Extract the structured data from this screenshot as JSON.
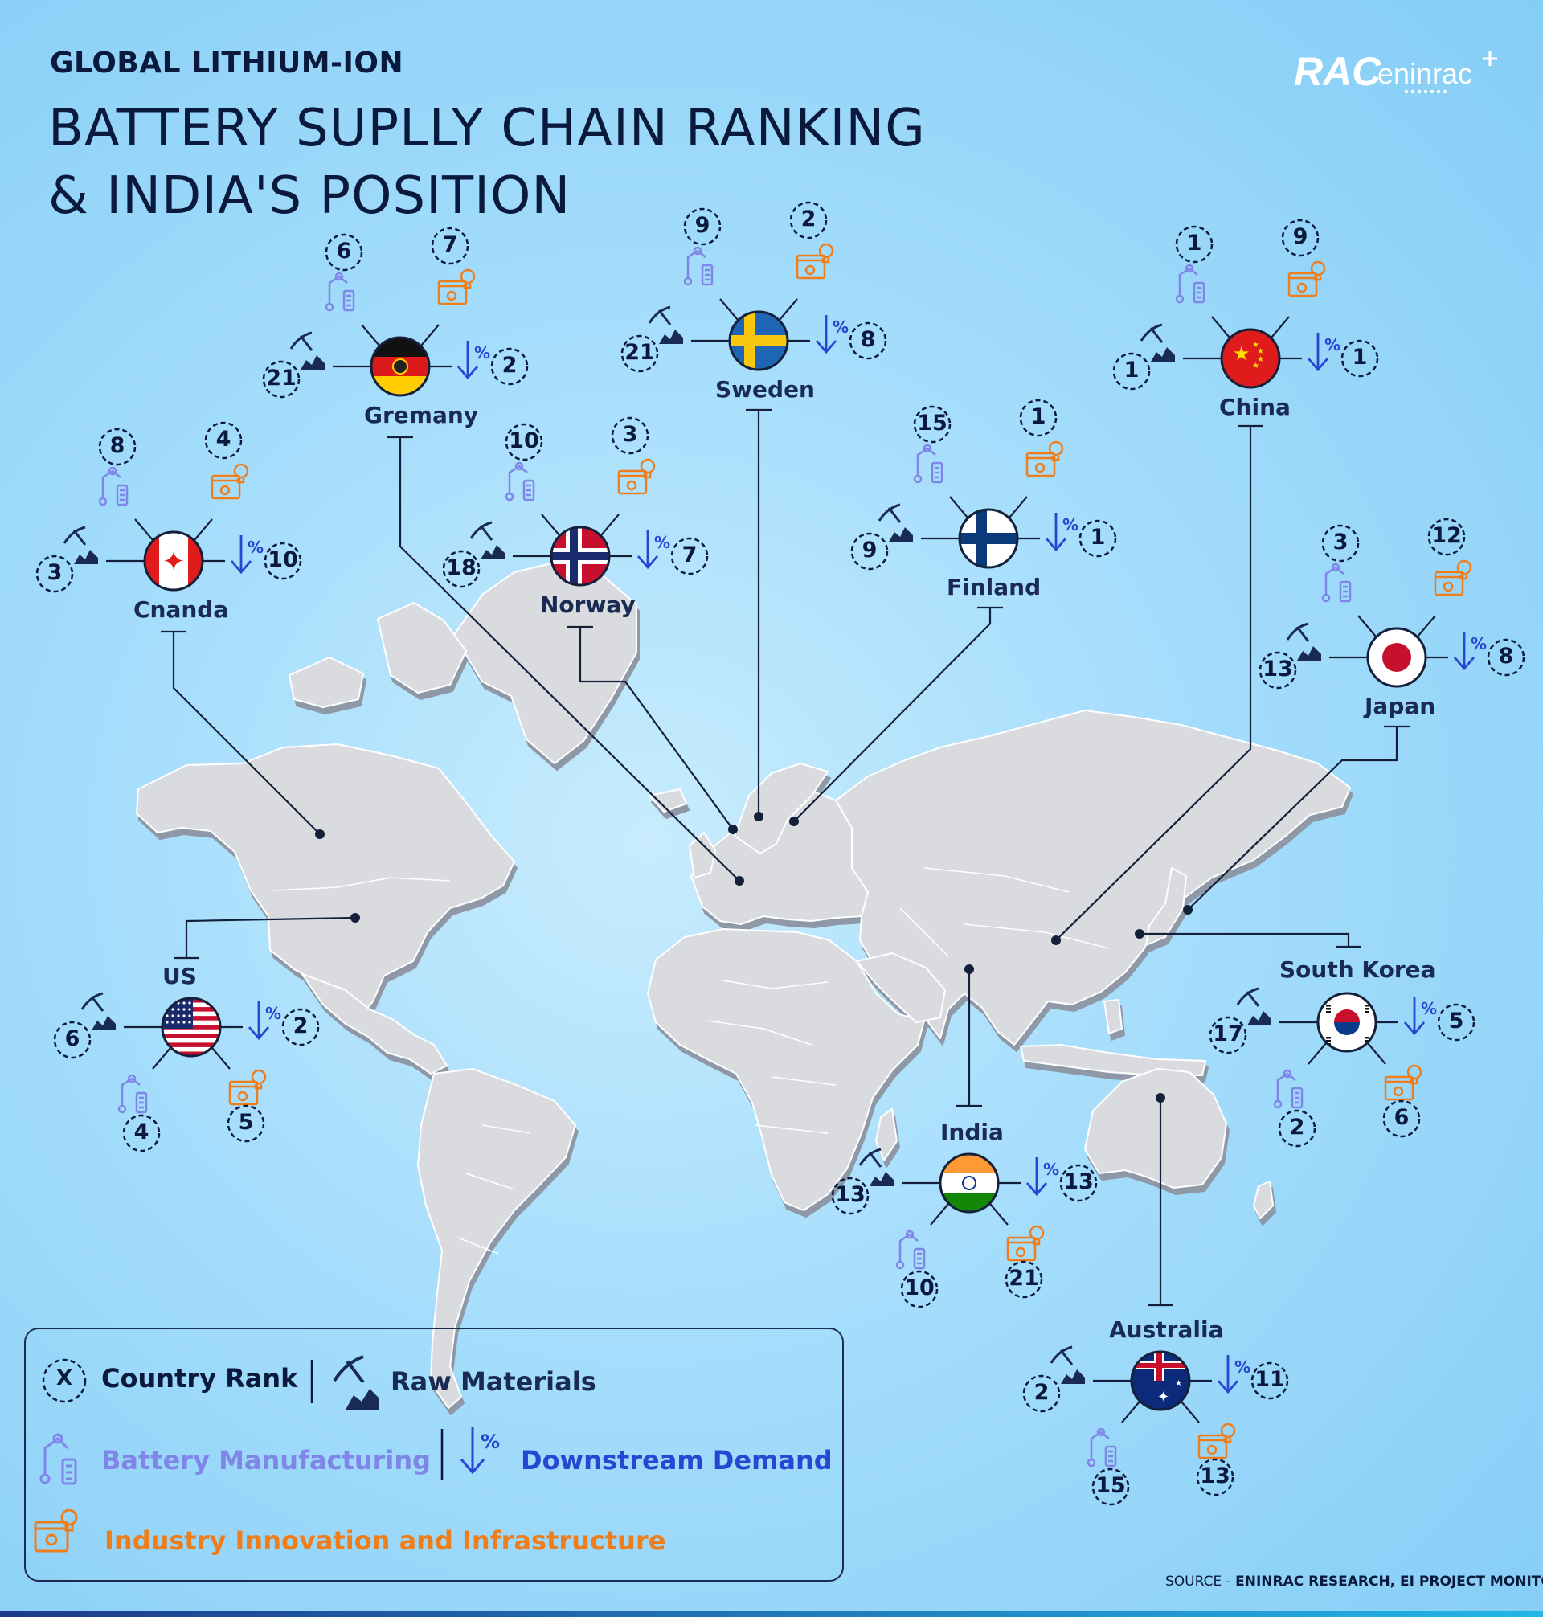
{
  "header": {
    "subtitle": "GLOBAL LITHIUM-ION",
    "title_line1": "BATTERY SUPLLY CHAIN RANKING",
    "title_line2": "& INDIA'S POSITION",
    "logo_text_a": "RAC",
    "logo_text_b": "eninrac"
  },
  "countries": [
    {
      "name": "Gremany",
      "flag": "germany-flag-icon",
      "raw": "21",
      "battery": "6",
      "innovation": "7",
      "demand": "2"
    },
    {
      "name": "Sweden",
      "flag": "sweden-flag-icon",
      "raw": "21",
      "battery": "9",
      "innovation": "2",
      "demand": "8"
    },
    {
      "name": "China",
      "flag": "china-flag-icon",
      "raw": "1",
      "battery": "1",
      "innovation": "9",
      "demand": "1"
    },
    {
      "name": "Cnanda",
      "flag": "canada-flag-icon",
      "raw": "3",
      "battery": "8",
      "innovation": "4",
      "demand": "10"
    },
    {
      "name": "Norway",
      "flag": "norway-flag-icon",
      "raw": "18",
      "battery": "10",
      "innovation": "3",
      "demand": "7"
    },
    {
      "name": "Finland",
      "flag": "finland-flag-icon",
      "raw": "9",
      "battery": "15",
      "innovation": "1",
      "demand": "1"
    },
    {
      "name": "Japan",
      "flag": "japan-flag-icon",
      "raw": "13",
      "battery": "3",
      "innovation": "12",
      "demand": "8"
    },
    {
      "name": "US",
      "flag": "us-flag-icon",
      "raw": "6",
      "battery": "4",
      "innovation": "5",
      "demand": "2"
    },
    {
      "name": "South Korea",
      "flag": "south-korea-flag-icon",
      "raw": "17",
      "battery": "2",
      "innovation": "6",
      "demand": "5"
    },
    {
      "name": "India",
      "flag": "india-flag-icon",
      "raw": "13",
      "battery": "10",
      "innovation": "21",
      "demand": "13"
    },
    {
      "name": "Australia",
      "flag": "australia-flag-icon",
      "raw": "2",
      "battery": "15",
      "innovation": "13",
      "demand": "11"
    }
  ],
  "legend": {
    "rank_symbol": "X",
    "country_rank": "Country Rank",
    "raw_materials": "Raw Materials",
    "battery_manufacturing": "Battery Manufacturing",
    "downstream_demand": "Downstream Demand",
    "industry_innovation": "Industry Innovation and Infrastructure"
  },
  "colors": {
    "navy": "#1a2b53",
    "battery": "#7f86e8",
    "demand": "#2746d1",
    "innovation": "#ef7d1a"
  },
  "source": {
    "label": "SOURCE - ",
    "value": "ENINRAC RESEARCH, EI PROJECT MONITOR"
  }
}
